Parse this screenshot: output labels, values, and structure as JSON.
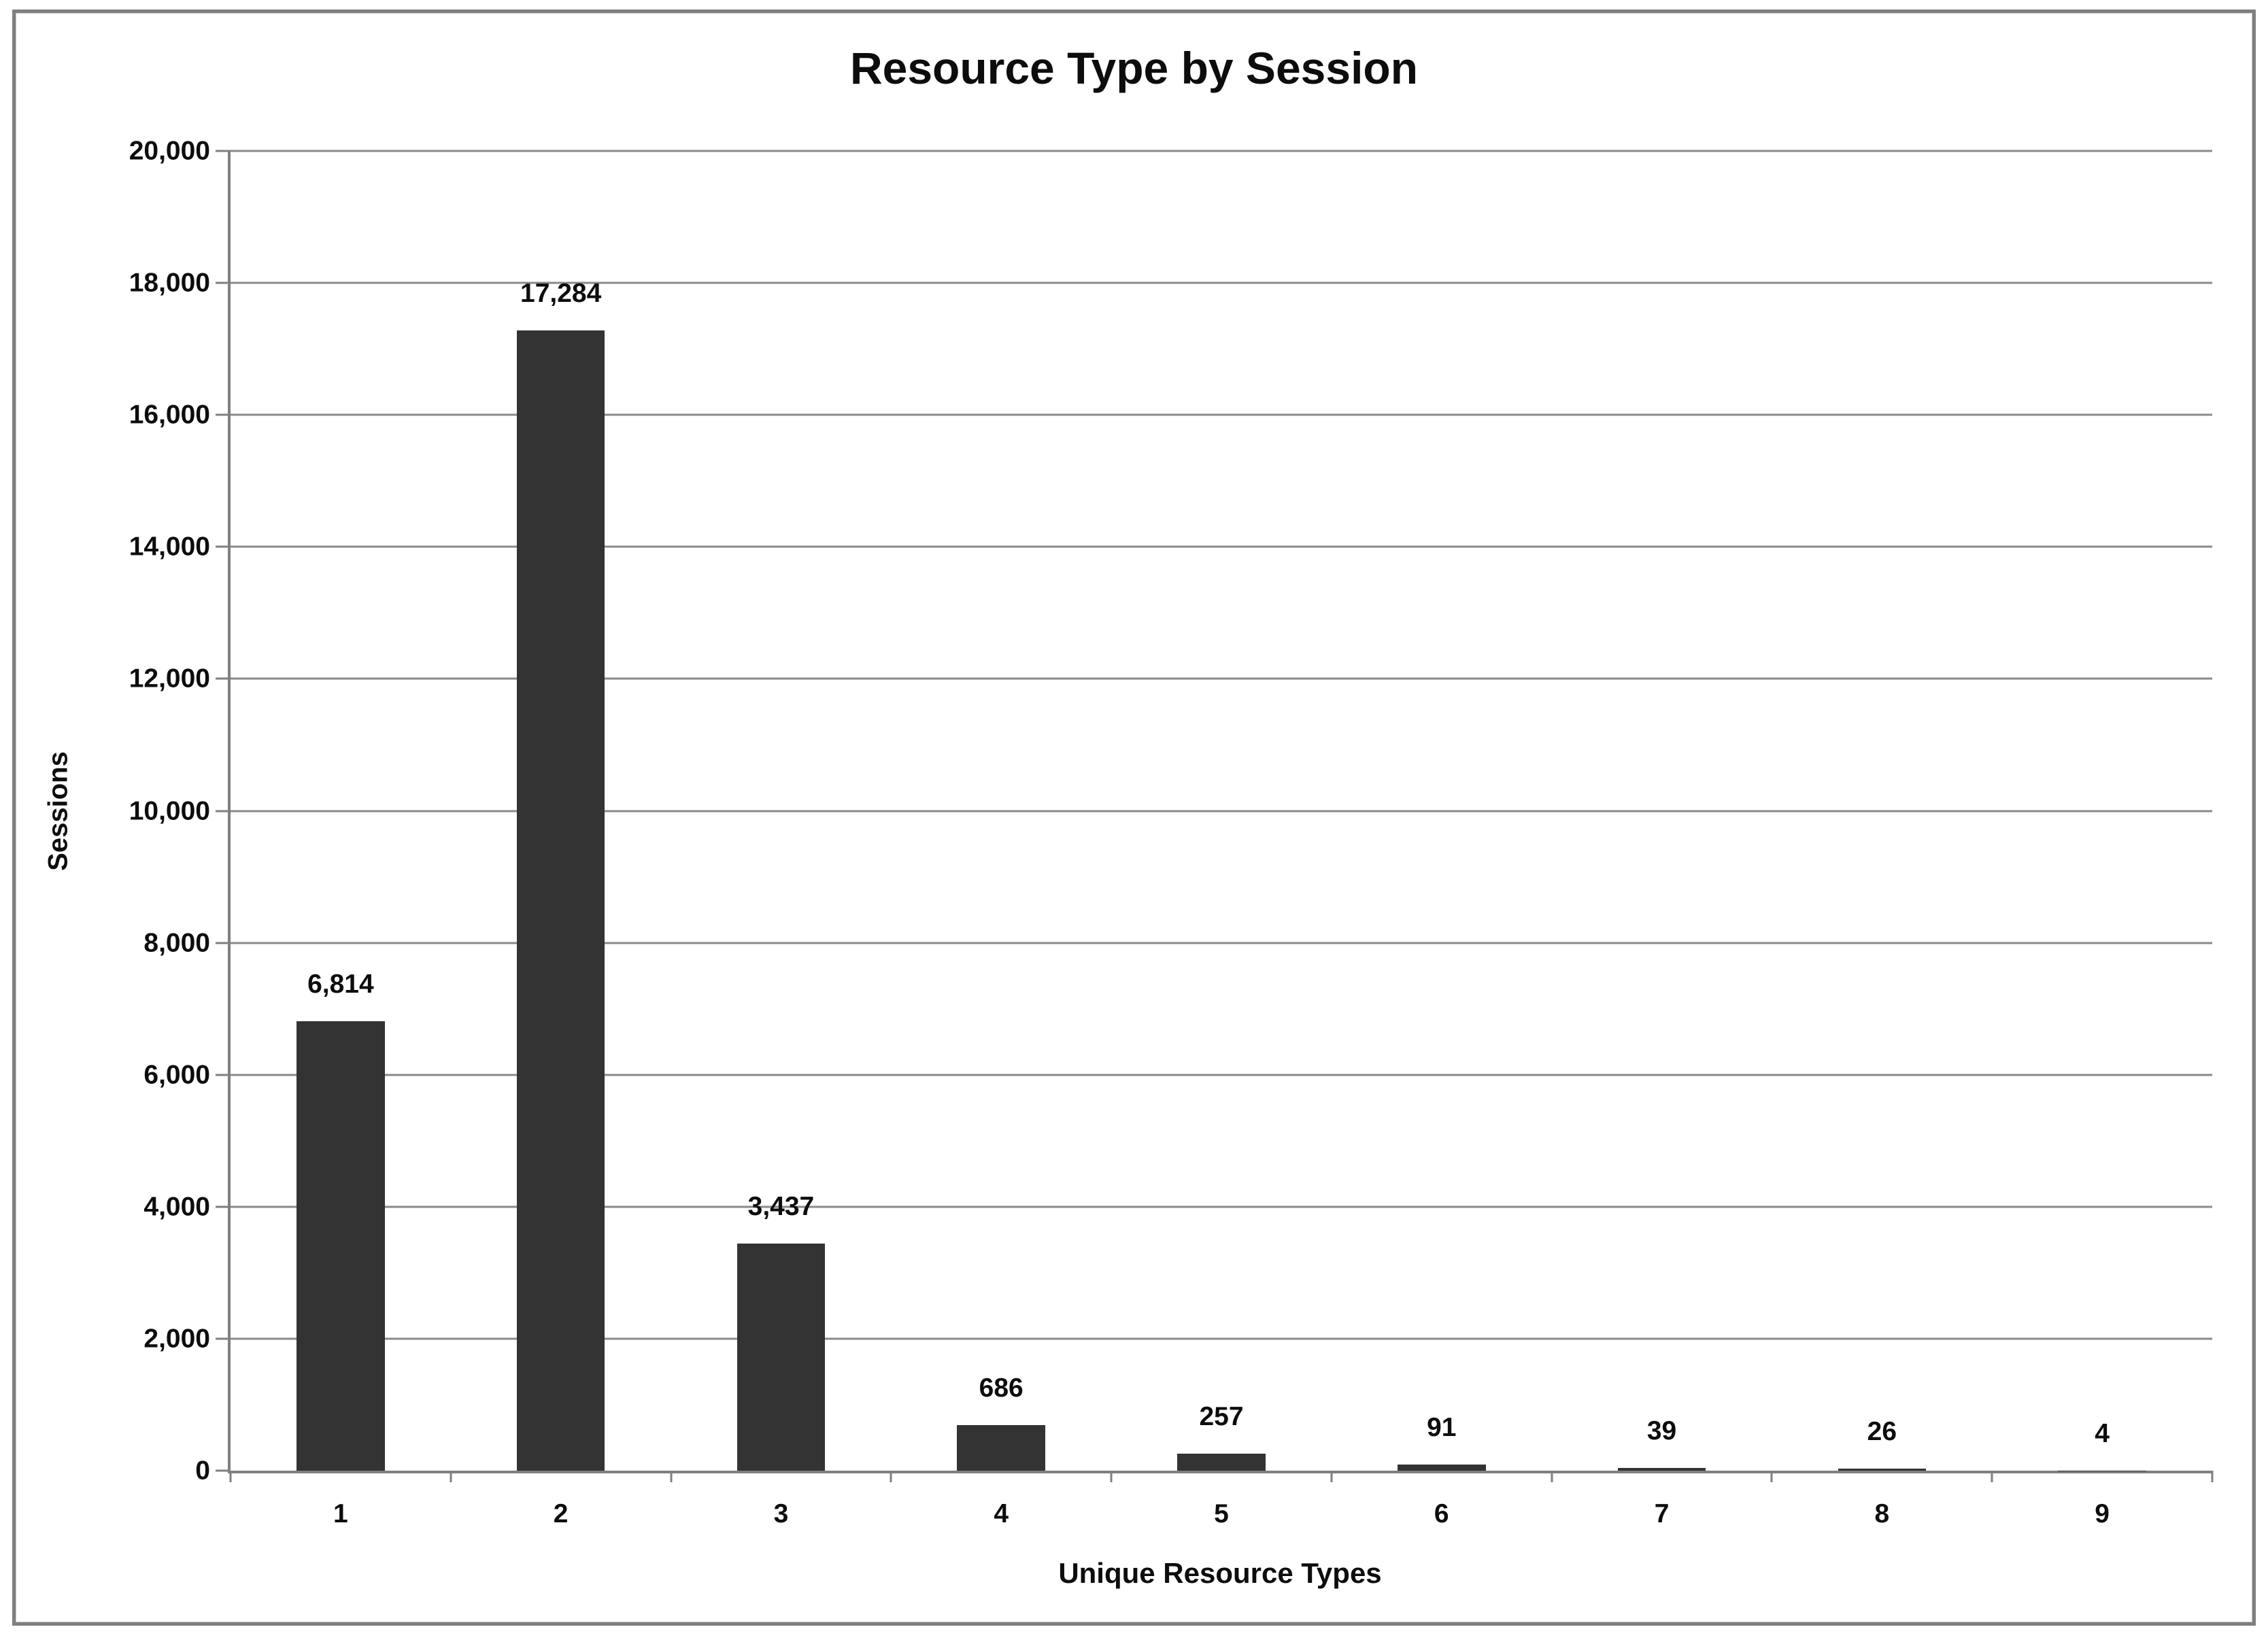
{
  "chart_data": {
    "type": "bar",
    "title": "Resource Type by Session",
    "xlabel": "Unique Resource Types",
    "ylabel": "Sessions",
    "categories": [
      "1",
      "2",
      "3",
      "4",
      "5",
      "6",
      "7",
      "8",
      "9"
    ],
    "values": [
      6814,
      17284,
      3437,
      686,
      257,
      91,
      39,
      26,
      4
    ],
    "data_labels": [
      "6,814",
      "17,284",
      "3,437",
      "686",
      "257",
      "91",
      "39",
      "26",
      "4"
    ],
    "ylim": [
      0,
      20000
    ],
    "ytick_step": 2000,
    "yticks": [
      {
        "value": 0,
        "label": "0"
      },
      {
        "value": 2000,
        "label": "2,000"
      },
      {
        "value": 4000,
        "label": "4,000"
      },
      {
        "value": 6000,
        "label": "6,000"
      },
      {
        "value": 8000,
        "label": "8,000"
      },
      {
        "value": 10000,
        "label": "10,000"
      },
      {
        "value": 12000,
        "label": "12,000"
      },
      {
        "value": 14000,
        "label": "14,000"
      },
      {
        "value": 16000,
        "label": "16,000"
      },
      {
        "value": 18000,
        "label": "18,000"
      },
      {
        "value": 20000,
        "label": "20,000"
      }
    ],
    "grid": "horizontal",
    "legend_position": "none",
    "colors": {
      "bar_fill": "#333333",
      "axis_line": "#7f7f7f",
      "gridline": "#8a8a8a",
      "text": "#0d0d0d",
      "background": "#ffffff",
      "outer_frame": "#7f7f7f"
    }
  }
}
